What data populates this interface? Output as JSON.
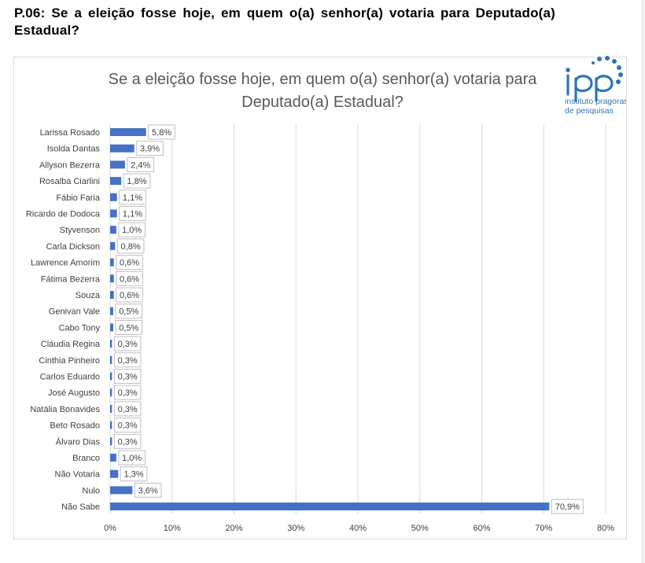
{
  "page": {
    "question": "P.06: Se a eleição fosse hoje, em quem o(a) senhor(a) votaria para Deputado(a) Estadual?"
  },
  "logo": {
    "letters": "IPP",
    "line1": "instituto pragoras",
    "line2": "de pesquisas",
    "color": "#2e75b6"
  },
  "chart_data": {
    "type": "bar",
    "orientation": "horizontal",
    "title_lines": [
      "Se a eleição fosse hoje, em quem o(a) senhor(a) votaria para",
      "Deputado(a) Estadual?"
    ],
    "categories": [
      "Larissa Rosado",
      "Isolda Dantas",
      "Allyson Bezerra",
      "Rosalba Ciarlini",
      "Fábio Faria",
      "Ricardo de Dodoca",
      "Styvenson",
      "Carla Dickson",
      "Lawrence Amorim",
      "Fátima Bezerra",
      "Souza",
      "Genivan Vale",
      "Cabo Tony",
      "Cláudia Regina",
      "Cinthia Pinheiro",
      "Carlos Eduardo",
      "José Augusto",
      "Natália Bonavides",
      "Beto Rosado",
      "Álvaro Dias",
      "Branco",
      "Não Votaria",
      "Nulo",
      "Não Sabe"
    ],
    "values": [
      5.8,
      3.9,
      2.4,
      1.8,
      1.1,
      1.1,
      1.0,
      0.8,
      0.6,
      0.6,
      0.6,
      0.5,
      0.5,
      0.3,
      0.3,
      0.3,
      0.3,
      0.3,
      0.3,
      0.3,
      1.0,
      1.3,
      3.6,
      70.9
    ],
    "labels": [
      "5,8%",
      "3,9%",
      "2,4%",
      "1,8%",
      "1,1%",
      "1,1%",
      "1,0%",
      "0,8%",
      "0,6%",
      "0,6%",
      "0,6%",
      "0,5%",
      "0,5%",
      "0,3%",
      "0,3%",
      "0,3%",
      "0,3%",
      "0,3%",
      "0,3%",
      "0,3%",
      "1,0%",
      "1,3%",
      "3,6%",
      "70,9%"
    ],
    "xticks": [
      "0%",
      "10%",
      "20%",
      "30%",
      "40%",
      "50%",
      "60%",
      "70%",
      "80%"
    ],
    "xlim": [
      0,
      80
    ],
    "grid": true,
    "bar_color": "#4472c4",
    "gridline_color": "#d9d9d9",
    "title_color": "#595959",
    "text_color": "#404040"
  }
}
